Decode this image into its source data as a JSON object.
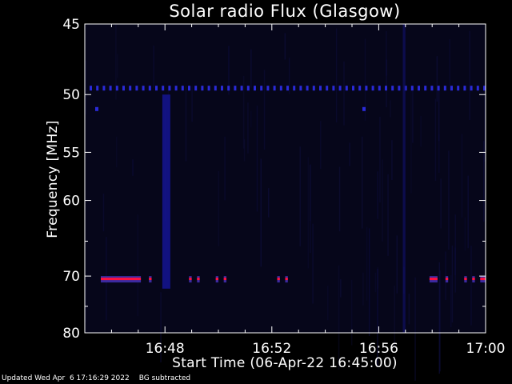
{
  "chart_data": {
    "type": "heatmap",
    "title": "Solar radio Flux (Glasgow)",
    "xlabel": "Start Time (06-Apr-22 16:45:00)",
    "ylabel": "Frequency [MHz]",
    "x_tick_labels": [
      "16:48",
      "16:52",
      "16:56",
      "17:00"
    ],
    "x_ticks_minutes_after_start": [
      3,
      7,
      11,
      15
    ],
    "x_range_minutes_after_start": [
      0,
      15
    ],
    "y_tick_labels": [
      "45",
      "50",
      "55",
      "60",
      "70",
      "80"
    ],
    "y_ticks_mhz": [
      45,
      50,
      55,
      60,
      70,
      80
    ],
    "y_range_mhz": [
      45,
      80
    ],
    "y_scale": "reciprocal",
    "y_inverted": true,
    "background_color": "#000000",
    "intensity_colors": {
      "low": "#0a0a2e",
      "mid": "#1c1ca0",
      "high": "#ff1040"
    },
    "features": [
      {
        "kind": "dashed_interference_line",
        "frequency_mhz": 49.5,
        "color": "#2a2ad8"
      },
      {
        "kind": "interference_band",
        "frequency_mhz": 70.5,
        "segments_minutes": [
          [
            0.6,
            2.1
          ],
          [
            2.4,
            2.5
          ],
          [
            3.9,
            4.0
          ],
          [
            4.2,
            4.3
          ],
          [
            4.9,
            5.0
          ],
          [
            5.2,
            5.3
          ],
          [
            7.2,
            7.3
          ],
          [
            7.5,
            7.6
          ],
          [
            12.9,
            13.2
          ],
          [
            13.5,
            13.6
          ],
          [
            14.2,
            14.3
          ],
          [
            14.5,
            14.6
          ],
          [
            14.8,
            15.0
          ]
        ],
        "color": "#ff1040"
      },
      {
        "kind": "broadband_column",
        "start_minutes": 2.9,
        "end_minutes": 3.2,
        "freq_range_mhz": [
          50,
          72
        ],
        "color": "#14148c"
      },
      {
        "kind": "faint_column",
        "start_minutes": 11.9,
        "end_minutes": 12.0,
        "freq_range_mhz": [
          45,
          80
        ],
        "color": "#101070"
      },
      {
        "kind": "spot",
        "minutes": 0.45,
        "frequency_mhz": 51.2,
        "color": "#2a2ad8"
      },
      {
        "kind": "spot",
        "minutes": 10.45,
        "frequency_mhz": 51.2,
        "color": "#2a2ad8"
      }
    ]
  },
  "footer": {
    "updated": "Updated Wed Apr  6 17:16:29 2022",
    "note": "BG subtracted"
  }
}
